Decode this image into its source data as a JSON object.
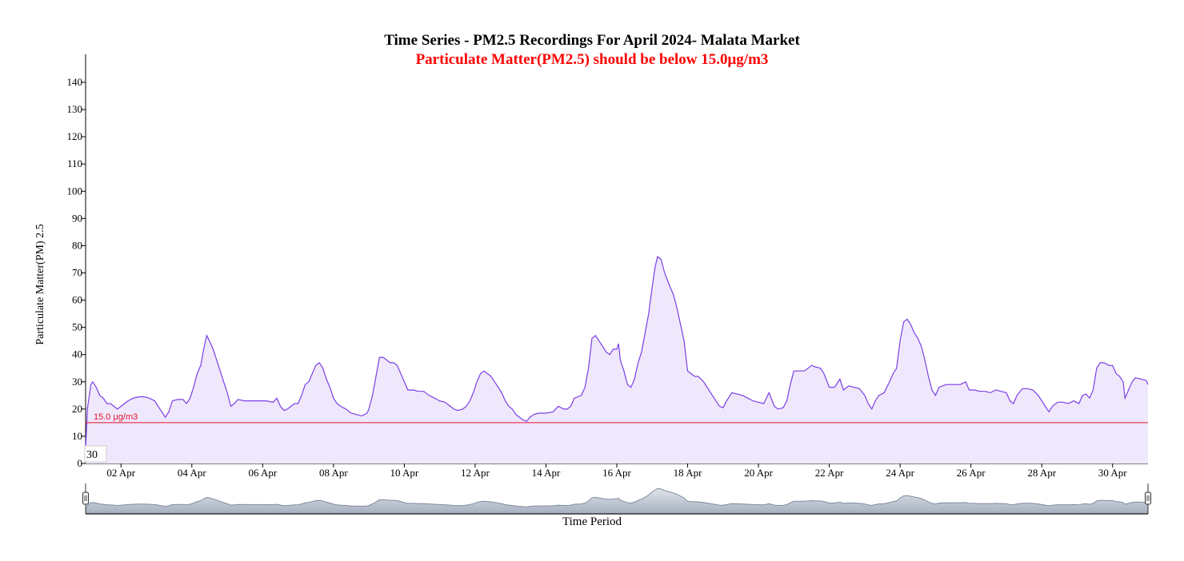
{
  "chart_data": {
    "type": "area",
    "title": "Time Series - PM2.5 Recordings For April 2024- Malata Market",
    "subtitle": "Particulate Matter(PM2.5) should be below 15.0μg/m3",
    "ylabel": "Particulate Matter(PM) 2.5",
    "xlabel": "Time Period",
    "ylim": [
      0,
      150
    ],
    "yticks": [
      0,
      10,
      20,
      30,
      40,
      50,
      60,
      70,
      80,
      90,
      100,
      110,
      120,
      130,
      140
    ],
    "xlim": [
      1.0,
      31.0
    ],
    "xticks": [
      {
        "day": 2,
        "label": "02 Apr"
      },
      {
        "day": 4,
        "label": "04 Apr"
      },
      {
        "day": 6,
        "label": "06 Apr"
      },
      {
        "day": 8,
        "label": "08 Apr"
      },
      {
        "day": 10,
        "label": "10 Apr"
      },
      {
        "day": 12,
        "label": "12 Apr"
      },
      {
        "day": 14,
        "label": "14 Apr"
      },
      {
        "day": 16,
        "label": "16 Apr"
      },
      {
        "day": 18,
        "label": "18 Apr"
      },
      {
        "day": 20,
        "label": "20 Apr"
      },
      {
        "day": 22,
        "label": "22 Apr"
      },
      {
        "day": 24,
        "label": "24 Apr"
      },
      {
        "day": 26,
        "label": "26 Apr"
      },
      {
        "day": 28,
        "label": "28 Apr"
      },
      {
        "day": 30,
        "label": "30 Apr"
      }
    ],
    "threshold": {
      "value": 15.0,
      "label": "15.0 μg/m3",
      "color": "#e8132e"
    },
    "series": [
      {
        "color": "#7b3fe4",
        "fill": "#efe8fc",
        "points": [
          [
            1.0,
            5
          ],
          [
            1.05,
            20
          ],
          [
            1.15,
            29
          ],
          [
            1.2,
            30
          ],
          [
            1.3,
            28
          ],
          [
            1.4,
            25
          ],
          [
            1.5,
            24
          ],
          [
            1.6,
            22
          ],
          [
            1.7,
            22
          ],
          [
            1.8,
            21
          ],
          [
            1.9,
            20
          ],
          [
            2.0,
            21
          ],
          [
            2.1,
            22
          ],
          [
            2.2,
            23
          ],
          [
            2.35,
            24
          ],
          [
            2.5,
            24.5
          ],
          [
            2.65,
            24.5
          ],
          [
            2.8,
            24
          ],
          [
            2.95,
            23
          ],
          [
            3.05,
            21
          ],
          [
            3.15,
            19
          ],
          [
            3.25,
            17
          ],
          [
            3.35,
            19
          ],
          [
            3.45,
            23
          ],
          [
            3.6,
            23.5
          ],
          [
            3.75,
            23.5
          ],
          [
            3.85,
            22
          ],
          [
            3.95,
            24
          ],
          [
            4.05,
            28
          ],
          [
            4.15,
            33
          ],
          [
            4.25,
            36
          ],
          [
            4.35,
            43
          ],
          [
            4.42,
            47
          ],
          [
            4.5,
            45
          ],
          [
            4.6,
            42
          ],
          [
            4.7,
            38
          ],
          [
            4.8,
            34
          ],
          [
            4.9,
            30
          ],
          [
            5.0,
            26
          ],
          [
            5.1,
            21
          ],
          [
            5.2,
            22
          ],
          [
            5.3,
            23.5
          ],
          [
            5.5,
            23
          ],
          [
            5.7,
            23
          ],
          [
            5.9,
            23
          ],
          [
            6.1,
            23
          ],
          [
            6.3,
            22.5
          ],
          [
            6.4,
            24
          ],
          [
            6.5,
            21
          ],
          [
            6.6,
            19.5
          ],
          [
            6.7,
            20
          ],
          [
            6.8,
            21
          ],
          [
            6.9,
            22
          ],
          [
            7.0,
            22
          ],
          [
            7.1,
            25
          ],
          [
            7.2,
            29
          ],
          [
            7.3,
            30
          ],
          [
            7.4,
            33
          ],
          [
            7.5,
            36
          ],
          [
            7.6,
            37
          ],
          [
            7.7,
            35
          ],
          [
            7.8,
            31
          ],
          [
            7.9,
            28
          ],
          [
            8.0,
            24
          ],
          [
            8.1,
            22
          ],
          [
            8.2,
            21
          ],
          [
            8.35,
            20
          ],
          [
            8.5,
            18.5
          ],
          [
            8.65,
            18
          ],
          [
            8.8,
            17.5
          ],
          [
            8.95,
            18.5
          ],
          [
            9.0,
            20
          ],
          [
            9.1,
            25
          ],
          [
            9.2,
            32
          ],
          [
            9.3,
            39
          ],
          [
            9.4,
            39
          ],
          [
            9.5,
            38
          ],
          [
            9.6,
            37
          ],
          [
            9.7,
            37
          ],
          [
            9.8,
            36
          ],
          [
            9.9,
            33
          ],
          [
            10.0,
            30
          ],
          [
            10.1,
            27
          ],
          [
            10.25,
            27
          ],
          [
            10.4,
            26.5
          ],
          [
            10.55,
            26.5
          ],
          [
            10.7,
            25
          ],
          [
            10.85,
            24
          ],
          [
            11.0,
            23
          ],
          [
            11.15,
            22.5
          ],
          [
            11.3,
            21
          ],
          [
            11.4,
            20
          ],
          [
            11.5,
            19.5
          ],
          [
            11.65,
            20
          ],
          [
            11.75,
            21
          ],
          [
            11.85,
            23
          ],
          [
            11.95,
            26
          ],
          [
            12.05,
            30
          ],
          [
            12.15,
            33
          ],
          [
            12.25,
            34
          ],
          [
            12.35,
            33
          ],
          [
            12.45,
            32
          ],
          [
            12.55,
            30
          ],
          [
            12.65,
            28
          ],
          [
            12.75,
            26
          ],
          [
            12.85,
            23
          ],
          [
            12.95,
            21
          ],
          [
            13.05,
            20
          ],
          [
            13.15,
            18
          ],
          [
            13.25,
            17
          ],
          [
            13.35,
            16
          ],
          [
            13.45,
            15.5
          ],
          [
            13.55,
            17
          ],
          [
            13.65,
            18
          ],
          [
            13.8,
            18.5
          ],
          [
            14.0,
            18.5
          ],
          [
            14.2,
            19
          ],
          [
            14.35,
            21
          ],
          [
            14.5,
            20
          ],
          [
            14.6,
            20
          ],
          [
            14.7,
            21
          ],
          [
            14.8,
            24
          ],
          [
            15.0,
            25
          ],
          [
            15.1,
            28
          ],
          [
            15.2,
            35
          ],
          [
            15.3,
            46
          ],
          [
            15.4,
            47
          ],
          [
            15.5,
            45
          ],
          [
            15.6,
            43
          ],
          [
            15.7,
            41
          ],
          [
            15.8,
            40
          ],
          [
            15.9,
            42
          ],
          [
            16.0,
            42
          ],
          [
            16.05,
            44
          ],
          [
            16.1,
            38
          ],
          [
            16.2,
            34
          ],
          [
            16.3,
            29
          ],
          [
            16.4,
            28
          ],
          [
            16.5,
            31
          ],
          [
            16.6,
            37
          ],
          [
            16.7,
            41
          ],
          [
            16.8,
            48
          ],
          [
            16.9,
            55
          ],
          [
            17.0,
            65
          ],
          [
            17.08,
            72
          ],
          [
            17.15,
            76
          ],
          [
            17.25,
            75
          ],
          [
            17.35,
            70
          ],
          [
            17.5,
            65
          ],
          [
            17.6,
            62
          ],
          [
            17.7,
            57
          ],
          [
            17.8,
            51
          ],
          [
            17.9,
            45
          ],
          [
            18.0,
            34
          ],
          [
            18.1,
            33
          ],
          [
            18.2,
            32
          ],
          [
            18.3,
            32
          ],
          [
            18.45,
            30
          ],
          [
            18.6,
            27
          ],
          [
            18.7,
            25
          ],
          [
            18.8,
            23
          ],
          [
            18.9,
            21
          ],
          [
            19.0,
            20.5
          ],
          [
            19.1,
            23
          ],
          [
            19.25,
            26
          ],
          [
            19.4,
            25.5
          ],
          [
            19.55,
            25
          ],
          [
            19.7,
            24
          ],
          [
            19.85,
            23
          ],
          [
            20.0,
            22.5
          ],
          [
            20.15,
            22
          ],
          [
            20.3,
            26
          ],
          [
            20.45,
            21
          ],
          [
            20.55,
            20
          ],
          [
            20.7,
            20.5
          ],
          [
            20.8,
            23
          ],
          [
            20.9,
            29
          ],
          [
            21.0,
            34
          ],
          [
            21.1,
            34
          ],
          [
            21.2,
            34
          ],
          [
            21.3,
            34
          ],
          [
            21.4,
            35
          ],
          [
            21.5,
            36
          ],
          [
            21.6,
            35.5
          ],
          [
            21.75,
            35
          ],
          [
            21.85,
            33
          ],
          [
            22.0,
            28
          ],
          [
            22.15,
            28
          ],
          [
            22.3,
            31
          ],
          [
            22.4,
            27
          ],
          [
            22.55,
            28.5
          ],
          [
            22.7,
            28
          ],
          [
            22.85,
            27.5
          ],
          [
            23.0,
            25
          ],
          [
            23.1,
            22
          ],
          [
            23.2,
            20
          ],
          [
            23.3,
            23
          ],
          [
            23.4,
            25
          ],
          [
            23.55,
            26
          ],
          [
            23.7,
            30
          ],
          [
            23.8,
            33
          ],
          [
            23.9,
            35
          ],
          [
            24.0,
            45
          ],
          [
            24.1,
            52
          ],
          [
            24.2,
            53
          ],
          [
            24.3,
            51
          ],
          [
            24.4,
            48
          ],
          [
            24.5,
            46
          ],
          [
            24.6,
            43
          ],
          [
            24.7,
            38
          ],
          [
            24.8,
            32
          ],
          [
            24.9,
            27
          ],
          [
            25.0,
            25
          ],
          [
            25.1,
            28
          ],
          [
            25.3,
            29
          ],
          [
            25.5,
            29
          ],
          [
            25.7,
            29
          ],
          [
            25.85,
            30
          ],
          [
            25.95,
            27
          ],
          [
            26.1,
            27
          ],
          [
            26.25,
            26.5
          ],
          [
            26.4,
            26.5
          ],
          [
            26.55,
            26
          ],
          [
            26.7,
            27
          ],
          [
            26.85,
            26.5
          ],
          [
            27.0,
            26
          ],
          [
            27.1,
            23
          ],
          [
            27.2,
            22
          ],
          [
            27.3,
            25
          ],
          [
            27.45,
            27.5
          ],
          [
            27.6,
            27.5
          ],
          [
            27.75,
            27
          ],
          [
            27.9,
            25
          ],
          [
            28.0,
            23
          ],
          [
            28.1,
            21
          ],
          [
            28.2,
            19
          ],
          [
            28.3,
            21
          ],
          [
            28.45,
            22.5
          ],
          [
            28.6,
            22.5
          ],
          [
            28.75,
            22
          ],
          [
            28.9,
            23
          ],
          [
            29.05,
            22
          ],
          [
            29.15,
            25
          ],
          [
            29.25,
            25.5
          ],
          [
            29.35,
            24
          ],
          [
            29.45,
            27
          ],
          [
            29.55,
            35
          ],
          [
            29.65,
            37
          ],
          [
            29.75,
            37
          ],
          [
            29.9,
            36
          ],
          [
            30.0,
            36
          ],
          [
            30.1,
            33
          ],
          [
            30.2,
            32
          ],
          [
            30.3,
            30
          ],
          [
            30.35,
            24
          ],
          [
            30.45,
            27
          ],
          [
            30.55,
            30
          ],
          [
            30.65,
            31.5
          ],
          [
            30.8,
            31
          ],
          [
            30.95,
            30.5
          ],
          [
            31.0,
            29
          ]
        ]
      }
    ],
    "annotation_box": "30",
    "navigator": {
      "start_day": 1.0,
      "end_day": 31.0,
      "line_color": "#7f8b9c",
      "fill_top": "#e1e4ea",
      "fill_bottom": "#a5afc0"
    }
  }
}
